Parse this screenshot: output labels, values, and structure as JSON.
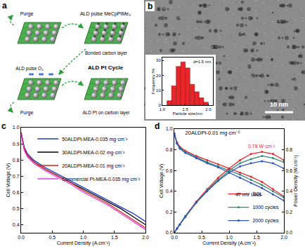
{
  "diagram": {
    "panel_label": "a",
    "labels": {
      "purge_top": "Purge",
      "pulse_precursor": "ALD pulse MeCpPtMe₃",
      "bonded": "Bonded carbon layer",
      "cycle": "ALD Pt Cycle",
      "pulse_o2": "ALD pulse O₂",
      "purge_bottom": "Purge",
      "result": "ALD Pt on carbon layer"
    }
  },
  "image": {
    "panel_label": "b",
    "scale_bar": "10 nm"
  },
  "chart_data": [
    {
      "type": "histogram",
      "bins": [
        1.1,
        1.2,
        1.3,
        1.4,
        1.5,
        1.6,
        1.7,
        1.8,
        1.9,
        2.0
      ],
      "values": [
        3,
        13,
        26,
        29,
        25,
        14,
        9,
        5,
        2
      ],
      "color": "#e8262a",
      "annotation": "d=1.5 nm",
      "x_label": "Particle size/nm",
      "y_label": "Frequency /%",
      "xlim": [
        1.0,
        2.1
      ],
      "xticks": [
        {
          "value": 1.0,
          "label": "1.0"
        },
        1.5,
        {
          "value": 2.0,
          "label": "2.0"
        }
      ],
      "ylim": [
        0,
        32
      ],
      "yticks": [
        0,
        10,
        20,
        30
      ]
    },
    {
      "panel_label": "c",
      "type": "line",
      "x": [
        0,
        0.05,
        0.1,
        0.2,
        0.4,
        0.6,
        0.8,
        1.0,
        1.2,
        1.4,
        1.6,
        1.8,
        2.0
      ],
      "series": [
        {
          "name": "50ALDPt-MEA-0.035 mg·cm⁻²",
          "color": "#1f3fbf",
          "line_style": "solid",
          "values": [
            0.97,
            0.88,
            0.84,
            0.8,
            0.75,
            0.71,
            0.67,
            0.63,
            0.59,
            0.55,
            0.51,
            0.47,
            0.42
          ]
        },
        {
          "name": "30ALDPt-MEA-0.02 mg·cm⁻²",
          "color": "#000000",
          "line_style": "solid",
          "values": [
            0.97,
            0.87,
            0.83,
            0.79,
            0.74,
            0.7,
            0.66,
            0.62,
            0.58,
            0.54,
            0.5,
            0.45,
            0.4
          ]
        },
        {
          "name": "20ALDPt-MEA-0.01 mg·cm⁻²",
          "color": "#e02020",
          "line_style": "solid",
          "values": [
            0.97,
            0.87,
            0.83,
            0.79,
            0.74,
            0.7,
            0.66,
            0.61,
            0.57,
            0.53,
            0.48,
            0.43,
            0.38
          ]
        },
        {
          "name": "Commercial Pt-MEA-0.035 mg·cm⁻²",
          "color": "#e040e0",
          "line_style": "solid",
          "values": [
            0.96,
            0.86,
            0.82,
            0.78,
            0.73,
            0.69,
            0.65,
            0.6,
            0.56,
            0.52,
            0.47,
            0.42,
            0.37
          ]
        }
      ],
      "x_label": "Current Density (A.cm⁻²)",
      "y_label": "Cell Voltage (V)",
      "xlim": [
        0,
        2.0
      ],
      "xticks": [
        {
          "value": 0,
          "label": "0.0"
        },
        0.5,
        {
          "value": 1.0,
          "label": "1.0"
        },
        1.5,
        {
          "value": 2.0,
          "label": "2.0"
        }
      ],
      "ylim": [
        0.35,
        1.0
      ],
      "yticks": [
        0.4,
        0.5,
        0.6,
        0.7,
        0.8,
        0.9,
        {
          "value": 1.0,
          "label": "1.0"
        }
      ],
      "legend": "upper right"
    },
    {
      "panel_label": "d",
      "type": "line",
      "title": "20ALDPt-0.01 mg·cm⁻²",
      "x": [
        0,
        0.05,
        0.1,
        0.2,
        0.4,
        0.6,
        0.8,
        1.0,
        1.2,
        1.4,
        1.6,
        1.8,
        2.0
      ],
      "series": [
        {
          "name": "BOL",
          "color": "#e8262a",
          "marker": "circle",
          "axis": "y",
          "values": [
            0.96,
            0.87,
            0.83,
            0.79,
            0.74,
            0.7,
            0.66,
            0.62,
            0.58,
            0.54,
            0.49,
            0.42,
            0.35
          ]
        },
        {
          "name": "1000 cycles",
          "color": "#2a8a7a",
          "marker": "circle",
          "axis": "y",
          "values": [
            0.95,
            0.86,
            0.82,
            0.78,
            0.73,
            0.68,
            0.64,
            0.6,
            0.56,
            0.51,
            0.46,
            0.4,
            0.34
          ]
        },
        {
          "name": "2000 cycles",
          "color": "#3050c0",
          "marker": "circle",
          "axis": "y",
          "values": [
            0.95,
            0.86,
            0.81,
            0.77,
            0.72,
            0.67,
            0.63,
            0.58,
            0.53,
            0.48,
            0.43,
            0.37,
            0.31
          ]
        },
        {
          "name": "BOL",
          "color": "#e8262a",
          "marker": "circle",
          "axis": "y2",
          "values": [
            0,
            0.04,
            0.08,
            0.16,
            0.3,
            0.42,
            0.53,
            0.62,
            0.7,
            0.76,
            0.78,
            0.76,
            0.7
          ]
        },
        {
          "name": "1000 cycles",
          "color": "#2a8a7a",
          "marker": "circle",
          "axis": "y2",
          "values": [
            0,
            0.04,
            0.08,
            0.16,
            0.29,
            0.41,
            0.51,
            0.6,
            0.67,
            0.71,
            0.74,
            0.72,
            0.68
          ]
        },
        {
          "name": "2000 cycles",
          "color": "#3050c0",
          "marker": "circle",
          "axis": "y2",
          "values": [
            0,
            0.04,
            0.08,
            0.15,
            0.29,
            0.4,
            0.5,
            0.58,
            0.64,
            0.67,
            0.69,
            0.67,
            0.62
          ]
        }
      ],
      "annotations": [
        {
          "text": "0.78 W·cm⁻²",
          "x": 1.6,
          "y": 0.78,
          "axis": "y2"
        },
        {
          "text": "47 mV Loss",
          "x": 1.35,
          "y": 0.33,
          "axis": "y"
        }
      ],
      "x_label": "Current Density (A.cm⁻²)",
      "y_label": "Cell Voltage (V)",
      "y2_label": "Power Density (W.cm⁻²)",
      "xlim": [
        0,
        2.0
      ],
      "xticks": [
        {
          "value": 0,
          "label": "0.0"
        },
        0.5,
        {
          "value": 1.0,
          "label": "1.0"
        },
        1.5,
        {
          "value": 2.0,
          "label": "2.0"
        }
      ],
      "ylim": [
        0,
        1.0
      ],
      "yticks": [
        {
          "value": 0,
          "label": "0.0"
        },
        0.2,
        0.4,
        0.6,
        0.8,
        {
          "value": 1.0,
          "label": "1.0"
        }
      ],
      "y2lim": [
        0,
        1.0
      ],
      "y2ticks": [
        {
          "value": 0,
          "label": "0.0"
        },
        0.2,
        0.4,
        0.6,
        0.8
      ],
      "legend": "lower right"
    }
  ]
}
